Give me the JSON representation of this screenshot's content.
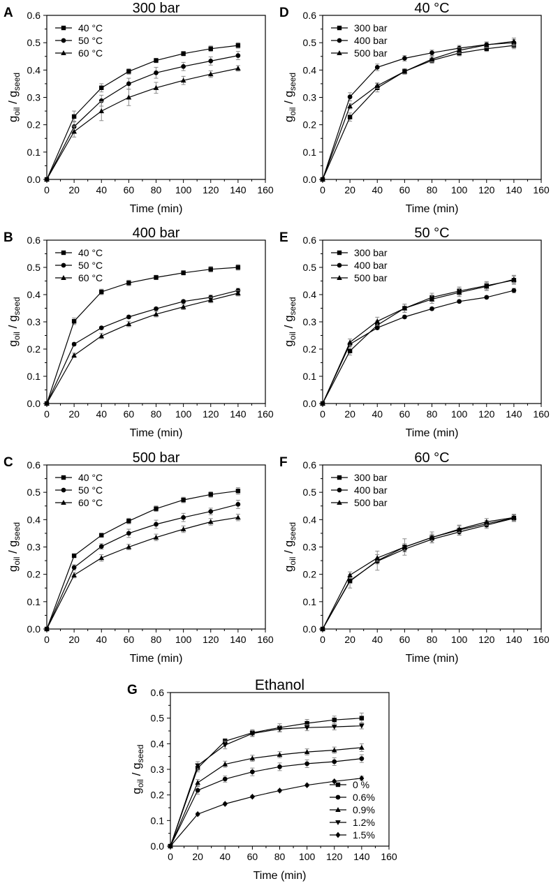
{
  "figure": {
    "y_label_main": "g",
    "y_label_sub1": "oil",
    "y_label_sep": " / g",
    "y_label_sub2": "seed",
    "x_label": "Time (min)"
  },
  "chart_data": [
    {
      "panel": "A",
      "type": "line",
      "title": "300 bar",
      "xlabel": "Time (min)",
      "ylabel": "g oil / g seed",
      "xlim": [
        0,
        160
      ],
      "ylim": [
        0,
        0.6
      ],
      "x_ticks": [
        "0",
        "20",
        "40",
        "60",
        "80",
        "100",
        "120",
        "140",
        "160"
      ],
      "y_ticks": [
        "0.0",
        "0.1",
        "0.2",
        "0.3",
        "0.4",
        "0.5",
        "0.6"
      ],
      "legend_position": "top-left",
      "x": [
        0,
        20,
        40,
        60,
        80,
        100,
        120,
        140
      ],
      "series": [
        {
          "name": "40 °C",
          "marker": "square",
          "values": [
            0,
            0.23,
            0.335,
            0.395,
            0.435,
            0.46,
            0.478,
            0.49
          ],
          "err": [
            0,
            0.02,
            0.015,
            0.01,
            0.008,
            0.008,
            0.01,
            0.01
          ]
        },
        {
          "name": "50 °C",
          "marker": "circle",
          "values": [
            0,
            0.193,
            0.288,
            0.35,
            0.39,
            0.413,
            0.433,
            0.453
          ],
          "err": [
            0,
            0.02,
            0.02,
            0.02,
            0.02,
            0.015,
            0.015,
            0.015
          ]
        },
        {
          "name": "60 °C",
          "marker": "triangle",
          "values": [
            0,
            0.175,
            0.25,
            0.3,
            0.335,
            0.362,
            0.385,
            0.406
          ],
          "err": [
            0,
            0.02,
            0.035,
            0.03,
            0.02,
            0.015,
            0.012,
            0.01
          ]
        }
      ]
    },
    {
      "panel": "B",
      "type": "line",
      "title": "400 bar",
      "xlabel": "Time (min)",
      "ylabel": "g oil / g seed",
      "xlim": [
        0,
        160
      ],
      "ylim": [
        0,
        0.6
      ],
      "x_ticks": [
        "0",
        "20",
        "40",
        "60",
        "80",
        "100",
        "120",
        "140",
        "160"
      ],
      "y_ticks": [
        "0.0",
        "0.1",
        "0.2",
        "0.3",
        "0.4",
        "0.5",
        "0.6"
      ],
      "legend_position": "top-left",
      "x": [
        0,
        20,
        40,
        60,
        80,
        100,
        120,
        140
      ],
      "series": [
        {
          "name": "40 °C",
          "marker": "square",
          "values": [
            0,
            0.302,
            0.41,
            0.443,
            0.463,
            0.48,
            0.493,
            0.5
          ],
          "err": [
            0,
            0.012,
            0.01,
            0.01,
            0.008,
            0.008,
            0.01,
            0.01
          ]
        },
        {
          "name": "50 °C",
          "marker": "circle",
          "values": [
            0,
            0.218,
            0.278,
            0.318,
            0.348,
            0.375,
            0.39,
            0.415
          ],
          "err": [
            0,
            0.005,
            0.005,
            0.005,
            0.005,
            0.005,
            0.008,
            0.008
          ]
        },
        {
          "name": "60 °C",
          "marker": "triangle",
          "values": [
            0,
            0.177,
            0.248,
            0.292,
            0.328,
            0.355,
            0.38,
            0.405
          ],
          "err": [
            0,
            0.008,
            0.01,
            0.01,
            0.01,
            0.01,
            0.01,
            0.01
          ]
        }
      ]
    },
    {
      "panel": "C",
      "type": "line",
      "title": "500 bar",
      "xlabel": "Time (min)",
      "ylabel": "g oil / g seed",
      "xlim": [
        0,
        160
      ],
      "ylim": [
        0,
        0.6
      ],
      "x_ticks": [
        "0",
        "20",
        "40",
        "60",
        "80",
        "100",
        "120",
        "140",
        "160"
      ],
      "y_ticks": [
        "0.0",
        "0.1",
        "0.2",
        "0.3",
        "0.4",
        "0.5",
        "0.6"
      ],
      "legend_position": "top-left",
      "x": [
        0,
        20,
        40,
        60,
        80,
        100,
        120,
        140
      ],
      "series": [
        {
          "name": "40 °C",
          "marker": "square",
          "values": [
            0,
            0.268,
            0.343,
            0.395,
            0.44,
            0.472,
            0.492,
            0.505
          ],
          "err": [
            0,
            0.005,
            0.005,
            0.01,
            0.01,
            0.01,
            0.01,
            0.012
          ]
        },
        {
          "name": "50 °C",
          "marker": "circle",
          "values": [
            0,
            0.225,
            0.302,
            0.35,
            0.383,
            0.408,
            0.43,
            0.456
          ],
          "err": [
            0,
            0.01,
            0.01,
            0.015,
            0.015,
            0.015,
            0.012,
            0.015
          ]
        },
        {
          "name": "60 °C",
          "marker": "triangle",
          "values": [
            0,
            0.197,
            0.26,
            0.3,
            0.335,
            0.365,
            0.392,
            0.408
          ],
          "err": [
            0,
            0.01,
            0.012,
            0.01,
            0.012,
            0.012,
            0.012,
            0.012
          ]
        }
      ]
    },
    {
      "panel": "D",
      "type": "line",
      "title": "40 °C",
      "xlabel": "Time (min)",
      "ylabel": "g oil / g seed",
      "xlim": [
        0,
        160
      ],
      "ylim": [
        0,
        0.6
      ],
      "x_ticks": [
        "0",
        "20",
        "40",
        "60",
        "80",
        "100",
        "120",
        "140",
        "160"
      ],
      "y_ticks": [
        "0.0",
        "0.1",
        "0.2",
        "0.3",
        "0.4",
        "0.5",
        "0.6"
      ],
      "legend_position": "top-left",
      "x": [
        0,
        20,
        40,
        60,
        80,
        100,
        120,
        140
      ],
      "series": [
        {
          "name": "300 bar",
          "marker": "square",
          "values": [
            0,
            0.228,
            0.335,
            0.395,
            0.435,
            0.462,
            0.478,
            0.49
          ],
          "err": [
            0,
            0.015,
            0.015,
            0.01,
            0.01,
            0.01,
            0.01,
            0.012
          ]
        },
        {
          "name": "400 bar",
          "marker": "circle",
          "values": [
            0,
            0.302,
            0.41,
            0.443,
            0.463,
            0.48,
            0.493,
            0.5
          ],
          "err": [
            0,
            0.015,
            0.012,
            0.01,
            0.01,
            0.01,
            0.01,
            0.012
          ]
        },
        {
          "name": "500 bar",
          "marker": "triangle",
          "values": [
            0,
            0.268,
            0.343,
            0.395,
            0.44,
            0.472,
            0.492,
            0.505
          ],
          "err": [
            0,
            0.01,
            0.01,
            0.01,
            0.01,
            0.01,
            0.01,
            0.012
          ]
        }
      ]
    },
    {
      "panel": "E",
      "type": "line",
      "title": "50 °C",
      "xlabel": "Time (min)",
      "ylabel": "g oil / g seed",
      "xlim": [
        0,
        160
      ],
      "ylim": [
        0,
        0.6
      ],
      "x_ticks": [
        "0",
        "20",
        "40",
        "60",
        "80",
        "100",
        "120",
        "140",
        "160"
      ],
      "y_ticks": [
        "0.0",
        "0.1",
        "0.2",
        "0.3",
        "0.4",
        "0.5",
        "0.6"
      ],
      "legend_position": "top-left",
      "x": [
        0,
        20,
        40,
        60,
        80,
        100,
        120,
        140
      ],
      "series": [
        {
          "name": "300 bar",
          "marker": "square",
          "values": [
            0,
            0.193,
            0.288,
            0.35,
            0.39,
            0.413,
            0.433,
            0.453
          ],
          "err": [
            0,
            0.015,
            0.015,
            0.015,
            0.015,
            0.015,
            0.015,
            0.015
          ]
        },
        {
          "name": "400 bar",
          "marker": "circle",
          "values": [
            0,
            0.218,
            0.278,
            0.318,
            0.348,
            0.375,
            0.39,
            0.415
          ],
          "err": [
            0,
            0.005,
            0.005,
            0.005,
            0.005,
            0.005,
            0.005,
            0.008
          ]
        },
        {
          "name": "500 bar",
          "marker": "triangle",
          "values": [
            0,
            0.225,
            0.302,
            0.35,
            0.383,
            0.408,
            0.43,
            0.456
          ],
          "err": [
            0,
            0.012,
            0.015,
            0.015,
            0.015,
            0.015,
            0.015,
            0.015
          ]
        }
      ]
    },
    {
      "panel": "F",
      "type": "line",
      "title": "60 °C",
      "xlabel": "Time (min)",
      "ylabel": "g oil / g seed",
      "xlim": [
        0,
        160
      ],
      "ylim": [
        0,
        0.6
      ],
      "x_ticks": [
        "0",
        "20",
        "40",
        "60",
        "80",
        "100",
        "120",
        "140",
        "160"
      ],
      "y_ticks": [
        "0.0",
        "0.1",
        "0.2",
        "0.3",
        "0.4",
        "0.5",
        "0.6"
      ],
      "legend_position": "top-left",
      "x": [
        0,
        20,
        40,
        60,
        80,
        100,
        120,
        140
      ],
      "series": [
        {
          "name": "300 bar",
          "marker": "square",
          "values": [
            0,
            0.175,
            0.25,
            0.3,
            0.335,
            0.362,
            0.385,
            0.406
          ],
          "err": [
            0,
            0.025,
            0.035,
            0.03,
            0.02,
            0.018,
            0.012,
            0.012
          ]
        },
        {
          "name": "400 bar",
          "marker": "circle",
          "values": [
            0,
            0.177,
            0.248,
            0.292,
            0.328,
            0.355,
            0.38,
            0.405
          ],
          "err": [
            0,
            0.01,
            0.01,
            0.01,
            0.012,
            0.012,
            0.012,
            0.012
          ]
        },
        {
          "name": "500 bar",
          "marker": "triangle",
          "values": [
            0,
            0.197,
            0.26,
            0.3,
            0.335,
            0.365,
            0.392,
            0.408
          ],
          "err": [
            0,
            0.012,
            0.012,
            0.012,
            0.012,
            0.012,
            0.012,
            0.012
          ]
        }
      ]
    },
    {
      "panel": "G",
      "type": "line",
      "title": "Ethanol",
      "xlabel": "Time (min)",
      "ylabel": "g oil / g seed",
      "xlim": [
        0,
        160
      ],
      "ylim": [
        0,
        0.6
      ],
      "x_ticks": [
        "0",
        "20",
        "40",
        "60",
        "80",
        "100",
        "120",
        "140",
        "160"
      ],
      "y_ticks": [
        "0.0",
        "0.1",
        "0.2",
        "0.3",
        "0.4",
        "0.5",
        "0.6"
      ],
      "legend_position": "bottom-right",
      "x": [
        0,
        20,
        40,
        60,
        80,
        100,
        120,
        140
      ],
      "series": [
        {
          "name": "0 %",
          "marker": "square",
          "values": [
            0,
            0.305,
            0.41,
            0.443,
            0.463,
            0.48,
            0.493,
            0.5
          ],
          "err": [
            0,
            0.015,
            0.01,
            0.012,
            0.015,
            0.015,
            0.015,
            0.02
          ]
        },
        {
          "name": "0.6%",
          "marker": "circle",
          "values": [
            0,
            0.218,
            0.262,
            0.29,
            0.31,
            0.322,
            0.33,
            0.342
          ],
          "err": [
            0,
            0.015,
            0.012,
            0.015,
            0.015,
            0.015,
            0.015,
            0.015
          ]
        },
        {
          "name": "0.9%",
          "marker": "triangle",
          "values": [
            0,
            0.248,
            0.32,
            0.343,
            0.357,
            0.368,
            0.375,
            0.385
          ],
          "err": [
            0,
            0.012,
            0.012,
            0.012,
            0.012,
            0.012,
            0.012,
            0.015
          ]
        },
        {
          "name": "1.2%",
          "marker": "triangle-down",
          "values": [
            0,
            0.315,
            0.395,
            0.44,
            0.458,
            0.463,
            0.466,
            0.47
          ],
          "err": [
            0,
            0.015,
            0.015,
            0.012,
            0.012,
            0.012,
            0.012,
            0.012
          ]
        },
        {
          "name": "1.5%",
          "marker": "diamond",
          "values": [
            0,
            0.125,
            0.165,
            0.193,
            0.217,
            0.238,
            0.253,
            0.265
          ],
          "err": [
            0,
            0.005,
            0.005,
            0.005,
            0.005,
            0.005,
            0.005,
            0.008
          ]
        }
      ]
    }
  ]
}
